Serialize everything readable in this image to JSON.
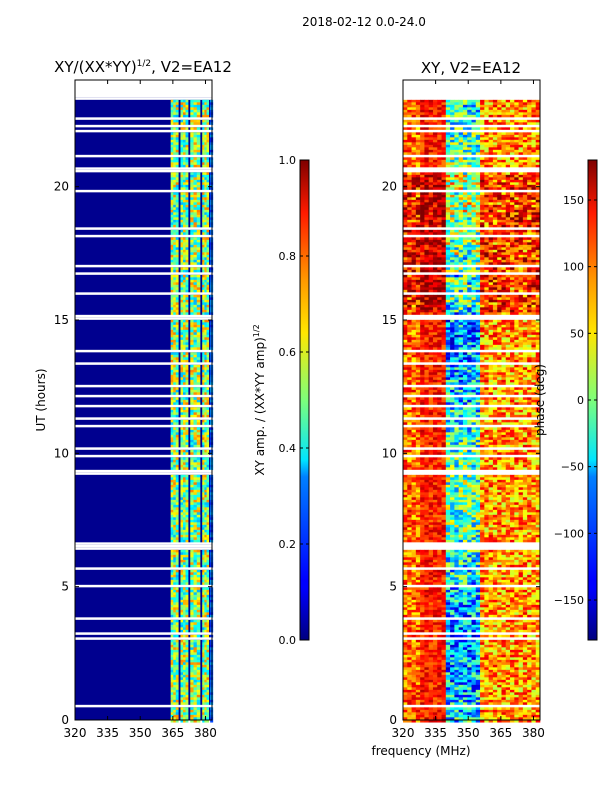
{
  "suptitle": "2018-02-12 0.0-24.0",
  "chart_data": [
    {
      "type": "heatmap",
      "title": "XY/(XX*YY)^1/2, V2=EA12",
      "title_main": "XY/(XX*YY)",
      "title_sup": "1/2",
      "title_rest": ", V2=EA12",
      "xlabel": "",
      "ylabel": "UT (hours)",
      "xlim": [
        320,
        383
      ],
      "ylim": [
        0,
        24
      ],
      "xticks": [
        "320",
        "335",
        "350",
        "365",
        "380"
      ],
      "xtick_values": [
        320,
        335,
        350,
        365,
        380
      ],
      "yticks": [
        "0",
        "5",
        "10",
        "15",
        "20"
      ],
      "ytick_values": [
        0,
        5,
        10,
        15,
        20
      ],
      "data_start_ut": 23.35,
      "blank_ut_ranges": [
        [
          6.45,
          6.7
        ],
        [
          15.05,
          15.25
        ],
        [
          20.6,
          20.8
        ]
      ],
      "high_freq_bands": [
        [
          364,
          367.5
        ],
        [
          368.5,
          372
        ],
        [
          373,
          377.5
        ],
        [
          378.5,
          381.5
        ]
      ],
      "colorbar": {
        "label": "XY amp. / (XX*YY amp)^1/2",
        "label_main": "XY amp. / (XX*YY amp)",
        "label_sup": "1/2",
        "range": [
          0.0,
          1.0
        ],
        "ticks": [
          "0.0",
          "0.2",
          "0.4",
          "0.6",
          "0.8",
          "1.0"
        ],
        "tick_values": [
          0.0,
          0.2,
          0.4,
          0.6,
          0.8,
          1.0
        ],
        "colormap": "jet"
      }
    },
    {
      "type": "heatmap",
      "title": "XY, V2=EA12",
      "xlabel": "frequency (MHz)",
      "ylabel": "",
      "xlim": [
        320,
        383
      ],
      "ylim": [
        0,
        24
      ],
      "xticks": [
        "320",
        "335",
        "350",
        "365",
        "380"
      ],
      "xtick_values": [
        320,
        335,
        350,
        365,
        380
      ],
      "yticks": [
        "0",
        "5",
        "10",
        "15",
        "20"
      ],
      "ytick_values": [
        0,
        5,
        10,
        15,
        20
      ],
      "data_start_ut": 23.35,
      "blank_ut_ranges": [
        [
          6.45,
          6.7
        ],
        [
          15.05,
          15.25
        ],
        [
          20.6,
          20.8
        ]
      ],
      "colorbar": {
        "label": "phase (deg)",
        "range": [
          -180,
          180
        ],
        "ticks": [
          "−150",
          "−100",
          "−50",
          "0",
          "50",
          "100",
          "150"
        ],
        "tick_values": [
          -150,
          -100,
          -50,
          0,
          50,
          100,
          150
        ],
        "colormap": "jet"
      }
    }
  ]
}
